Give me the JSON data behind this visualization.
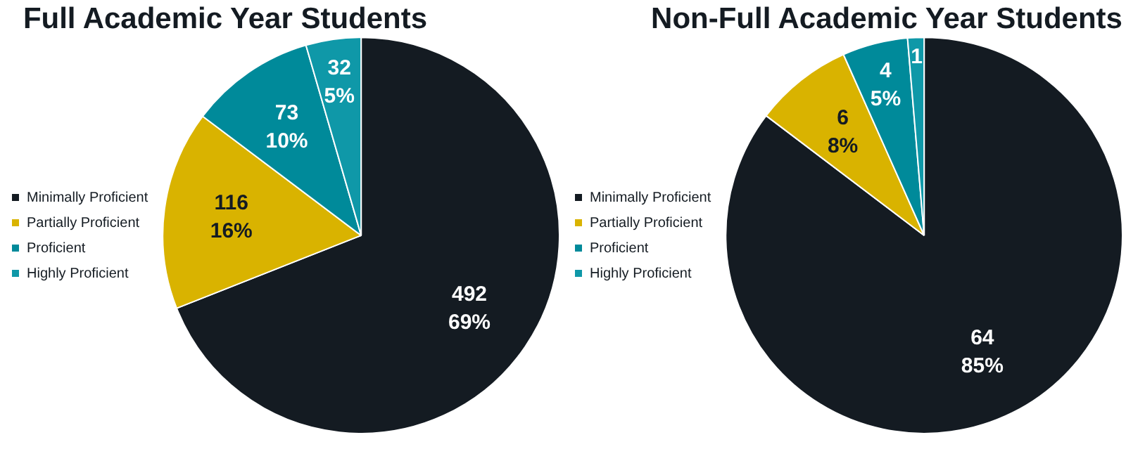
{
  "chart_data": [
    {
      "type": "pie",
      "title": "Full Academic Year Students",
      "categories": [
        "Minimally Proficient",
        "Partially Proficient",
        "Proficient",
        "Highly Proficient"
      ],
      "values": [
        492,
        116,
        73,
        32
      ],
      "colors": [
        "#141b22",
        "#d9b300",
        "#008a9a",
        "#0f98a8"
      ],
      "value_labels": [
        "492\n69%",
        "116\n16%",
        "73\n10%",
        "32\n5%"
      ],
      "legend": "left"
    },
    {
      "type": "pie",
      "title": "Non-Full Academic Year Students",
      "categories": [
        "Minimally Proficient",
        "Partially Proficient",
        "Proficient",
        "Highly Proficient"
      ],
      "values": [
        64,
        6,
        4,
        1
      ],
      "colors": [
        "#141b22",
        "#d9b300",
        "#008a9a",
        "#0f98a8"
      ],
      "value_labels": [
        "64\n85%",
        "6\n8%",
        "4\n5%",
        "1"
      ],
      "legend": "left"
    }
  ]
}
